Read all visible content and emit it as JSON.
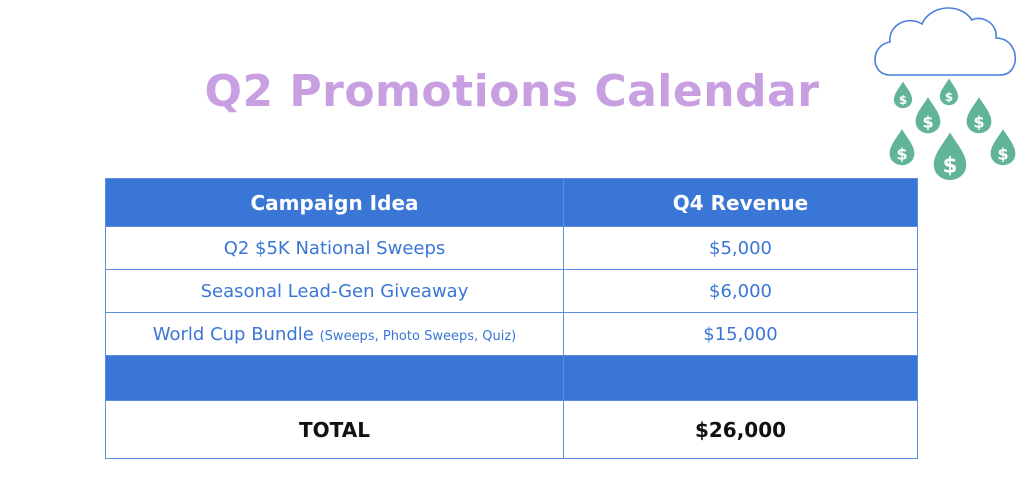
{
  "title": "Q2 Promotions Calendar",
  "table": {
    "headers": [
      "Campaign Idea",
      "Q4 Revenue"
    ],
    "rows": [
      {
        "campaign": "Q2 $5K National Sweeps",
        "note": "",
        "revenue": "$5,000"
      },
      {
        "campaign": "Seasonal Lead-Gen Giveaway",
        "note": "",
        "revenue": "$6,000"
      },
      {
        "campaign": "World Cup Bundle",
        "note": "(Sweeps, Photo Sweeps, Quiz)",
        "revenue": "$15,000"
      }
    ],
    "total_label": "TOTAL",
    "total_value": "$26,000"
  },
  "illustration": {
    "icon": "cloud-raining-money-icon",
    "cloud_color": "#4a7fdc",
    "drop_color": "#62b496",
    "drop_symbol": "$"
  },
  "colors": {
    "title": "#c89fe0",
    "accent": "#3a76d6"
  }
}
